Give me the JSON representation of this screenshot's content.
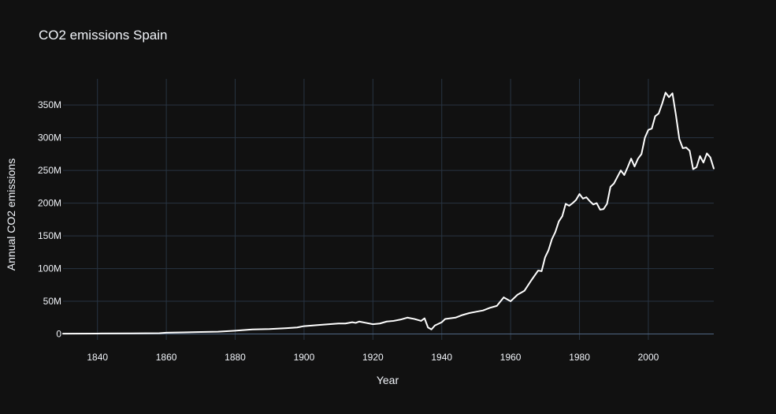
{
  "chart_data": {
    "type": "line",
    "title": "CO2 emissions Spain",
    "xlabel": "Year",
    "ylabel": "Annual CO2 emissions",
    "xlim": [
      1830,
      2019
    ],
    "ylim": [
      -9000000,
      390000000
    ],
    "x_ticks": [
      1840,
      1860,
      1880,
      1900,
      1920,
      1940,
      1960,
      1980,
      2000
    ],
    "x_tick_labels": [
      "1840",
      "1860",
      "1880",
      "1900",
      "1920",
      "1940",
      "1960",
      "1980",
      "2000"
    ],
    "y_ticks": [
      0,
      50000000,
      100000000,
      150000000,
      200000000,
      250000000,
      300000000,
      350000000
    ],
    "y_tick_labels": [
      "0",
      "50M",
      "100M",
      "150M",
      "200M",
      "250M",
      "300M",
      "350M"
    ],
    "grid": true,
    "legend": "none",
    "line_color": "#ffffff",
    "background_color": "#111111",
    "series": [
      {
        "x": [
          1830,
          1840,
          1850,
          1858,
          1860,
          1865,
          1870,
          1875,
          1880,
          1885,
          1890,
          1895,
          1898,
          1900,
          1905,
          1910,
          1912,
          1914,
          1915,
          1916,
          1918,
          1920,
          1922,
          1924,
          1926,
          1928,
          1930,
          1932,
          1934,
          1935,
          1936,
          1937,
          1938,
          1940,
          1941,
          1944,
          1946,
          1948,
          1950,
          1952,
          1954,
          1956,
          1958,
          1960,
          1962,
          1964,
          1966,
          1968,
          1969,
          1970,
          1971,
          1972,
          1973,
          1974,
          1975,
          1976,
          1977,
          1978,
          1979,
          1980,
          1981,
          1982,
          1983,
          1984,
          1985,
          1986,
          1987,
          1988,
          1989,
          1990,
          1991,
          1992,
          1993,
          1994,
          1995,
          1996,
          1997,
          1998,
          1999,
          2000,
          2001,
          2002,
          2003,
          2004,
          2005,
          2006,
          2007,
          2008,
          2009,
          2010,
          2011,
          2012,
          2013,
          2014,
          2015,
          2016,
          2017,
          2018,
          2019
        ],
        "y": [
          500000,
          700000,
          1000000,
          1200000,
          2000000,
          2500000,
          3000000,
          3500000,
          5000000,
          7000000,
          7500000,
          9000000,
          10000000,
          12000000,
          14000000,
          16000000,
          16000000,
          18000000,
          17000000,
          19000000,
          17000000,
          15000000,
          16000000,
          19000000,
          20000000,
          22000000,
          25000000,
          23000000,
          20000000,
          24000000,
          10000000,
          7000000,
          13000000,
          18000000,
          23000000,
          25000000,
          29000000,
          32000000,
          34000000,
          36000000,
          40000000,
          43000000,
          56000000,
          50000000,
          60000000,
          66000000,
          82000000,
          97000000,
          96000000,
          117000000,
          128000000,
          145000000,
          156000000,
          172000000,
          180000000,
          199000000,
          196000000,
          200000000,
          205000000,
          214000000,
          207000000,
          209000000,
          203000000,
          198000000,
          200000000,
          190000000,
          191000000,
          199000000,
          225000000,
          230000000,
          240000000,
          250000000,
          243000000,
          255000000,
          268000000,
          256000000,
          268000000,
          275000000,
          300000000,
          312000000,
          314000000,
          333000000,
          337000000,
          352000000,
          369000000,
          362000000,
          368000000,
          335000000,
          298000000,
          284000000,
          285000000,
          280000000,
          252000000,
          255000000,
          272000000,
          262000000,
          276000000,
          270000000,
          253000000
        ]
      }
    ]
  }
}
